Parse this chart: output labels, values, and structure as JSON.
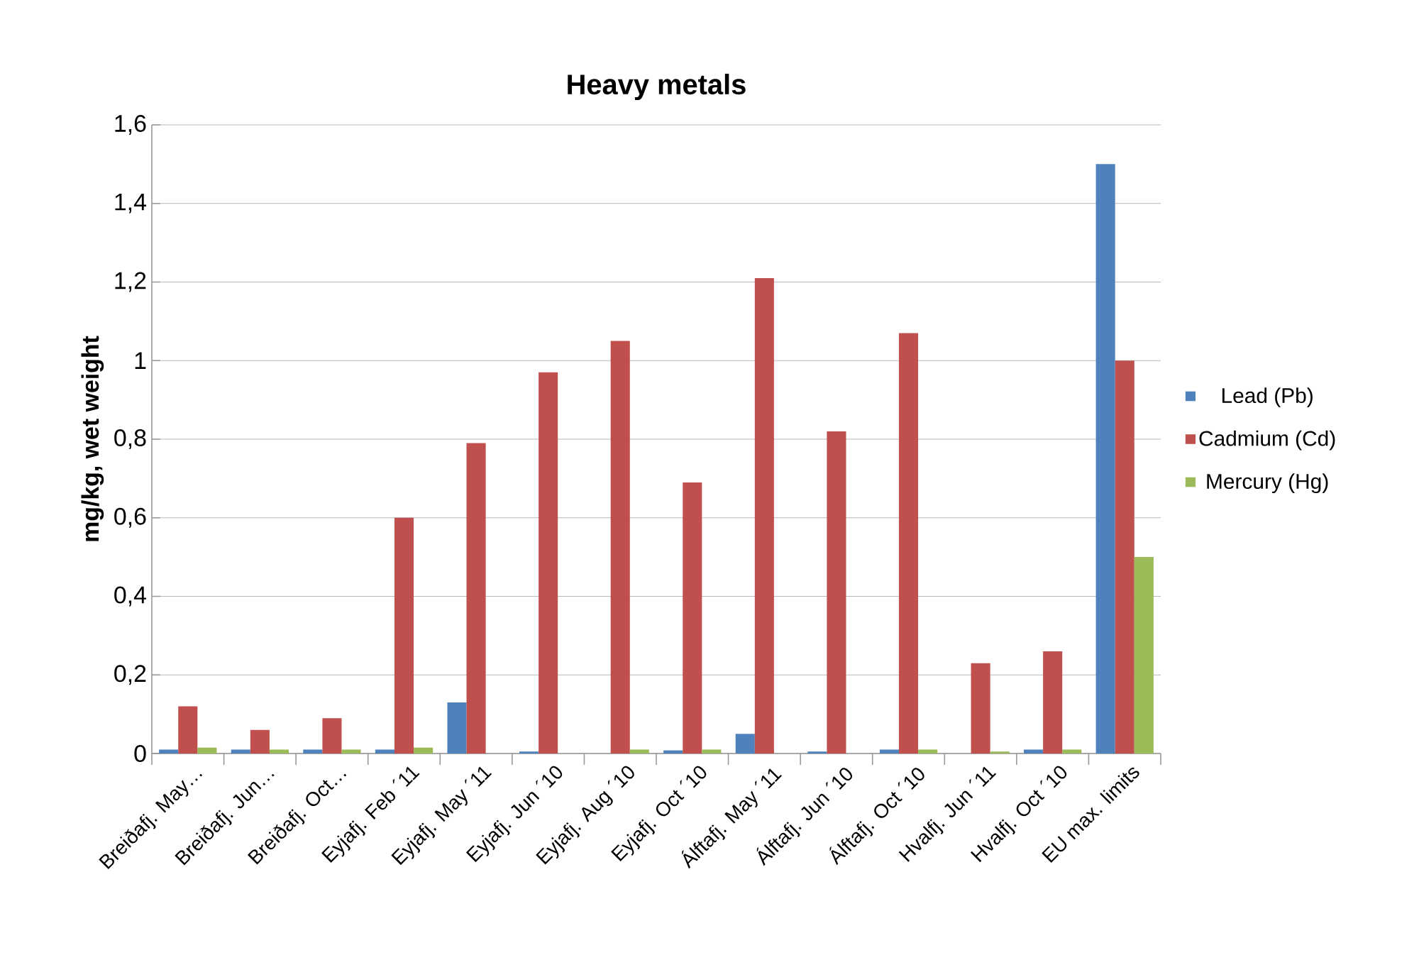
{
  "chart_data": {
    "type": "bar",
    "title": "Heavy metals",
    "ylabel": "mg/kg, wet weight",
    "categories": [
      "Breiðafj. May…",
      "Breiðafj. Jun…",
      "Breiðafj. Oct…",
      "Eyjafj. Feb ´11",
      "Eyjafj.  May ´11",
      "Eyjafj. Jun ´10",
      "Eyjafj. Aug ´10",
      "Eyjafj. Oct ´10",
      "Álftafj. May ´11",
      "Álftafj. Jun ´10",
      "Álftafj. Oct ´10",
      "Hvalfj. Jun ´11",
      "Hvalfj. Oct ´10",
      "EU max. limits"
    ],
    "series": [
      {
        "name": "Lead (Pb)",
        "color": "#4f81bd",
        "values": [
          0.01,
          0.01,
          0.01,
          0.01,
          0.13,
          0.005,
          null,
          0.008,
          0.05,
          0.005,
          0.01,
          null,
          0.01,
          1.5
        ]
      },
      {
        "name": "Cadmium (Cd)",
        "color": "#c0504d",
        "values": [
          0.12,
          0.06,
          0.09,
          0.6,
          0.79,
          0.97,
          1.05,
          0.69,
          1.21,
          0.82,
          1.07,
          0.23,
          0.26,
          1.0
        ]
      },
      {
        "name": "Mercury (Hg)",
        "color": "#9bbb59",
        "values": [
          0.015,
          0.01,
          0.01,
          0.015,
          null,
          null,
          0.01,
          0.01,
          null,
          null,
          0.01,
          0.005,
          0.01,
          0.5
        ]
      }
    ],
    "ylim": [
      0,
      1.6
    ],
    "yticks": [
      0,
      {
        "value": 0.2,
        "label": "0,2"
      },
      {
        "value": 0.4,
        "label": "0,4"
      },
      {
        "value": 0.6,
        "label": "0,6"
      },
      {
        "value": 0.8,
        "label": "0,8"
      },
      1,
      {
        "value": 1.2,
        "label": "1,2"
      },
      {
        "value": 1.4,
        "label": "1,4"
      },
      {
        "value": 1.6,
        "label": "1,6"
      }
    ],
    "grid": "y",
    "legend": "right"
  }
}
